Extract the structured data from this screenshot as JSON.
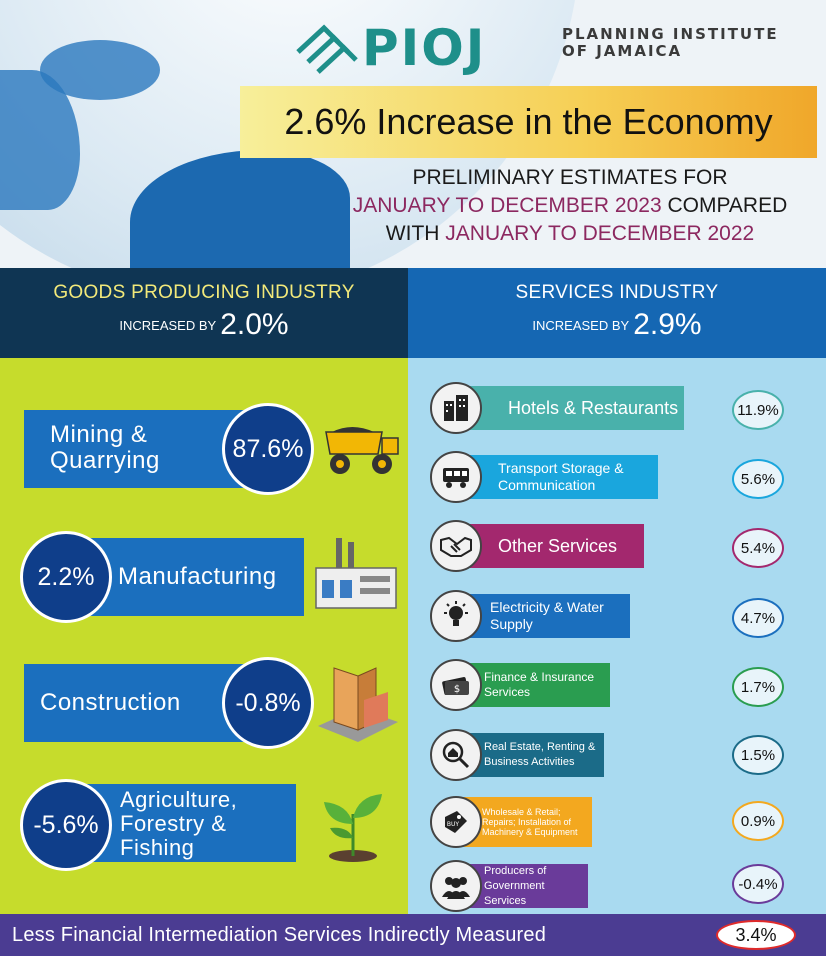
{
  "header": {
    "logo_word": "PIOJ",
    "logo_sub_line1": "PLANNING INSTITUTE",
    "logo_sub_line2": "OF JAMAICA",
    "title": "2.6% Increase in the Economy",
    "subtitle_line1": "PRELIMINARY ESTIMATES FOR",
    "subtitle_period1": "JANUARY TO DECEMBER 2023",
    "subtitle_compared": " COMPARED",
    "subtitle_with": "WITH ",
    "subtitle_period2": "JANUARY TO DECEMBER 2022"
  },
  "goods": {
    "title": "GOODS PRODUCING INDUSTRY",
    "increase_prefix": "INCREASED BY",
    "increase_value": "2.0%",
    "items": [
      {
        "label_line1": "Mining &",
        "label_line2": "Quarrying",
        "value": "87.6%",
        "icon": "dump-truck-icon"
      },
      {
        "label_line1": "Manufacturing",
        "label_line2": "",
        "value": "2.2%",
        "icon": "factory-icon"
      },
      {
        "label_line1": "Construction",
        "label_line2": "",
        "value": "-0.8%",
        "icon": "building-icon"
      },
      {
        "label_line1": "Agriculture,",
        "label_line2": "Forestry &",
        "label_line3": "Fishing",
        "value": "-5.6%",
        "icon": "sprout-icon"
      }
    ]
  },
  "services": {
    "title": "SERVICES INDUSTRY",
    "increase_prefix": "INCREASED BY",
    "increase_value": "2.9%",
    "items": [
      {
        "label": "Hotels & Restaurants",
        "value": "11.9%",
        "color": "#49b1ab",
        "icon": "hotel-icon"
      },
      {
        "label": "Transport Storage & Communication",
        "value": "5.6%",
        "color": "#1aa6dd",
        "icon": "train-icon"
      },
      {
        "label": "Other Services",
        "value": "5.4%",
        "color": "#a3286e",
        "icon": "handshake-icon"
      },
      {
        "label": "Electricity & Water Supply",
        "value": "4.7%",
        "color": "#1b6fbe",
        "icon": "lightbulb-icon"
      },
      {
        "label": "Finance & Insurance Services",
        "value": "1.7%",
        "color": "#2a9d50",
        "icon": "money-icon"
      },
      {
        "label": "Real Estate, Renting & Business Activities",
        "value": "1.5%",
        "color": "#1b6b88",
        "icon": "house-search-icon"
      },
      {
        "label": "Wholesale & Retail; Repairs; Installation of Machinery & Equipment",
        "value": "0.9%",
        "color": "#f3a81f",
        "icon": "price-tag-icon"
      },
      {
        "label": "Producers of Government Services",
        "value": "-0.4%",
        "color": "#6a3b9a",
        "icon": "people-icon"
      }
    ]
  },
  "footer": {
    "label": "Less Financial Intermediation Services Indirectly Measured",
    "value": "3.4%"
  },
  "colors": {
    "goods_panel": "#c6dc2c",
    "services_panel": "#a9daf0",
    "goods_header": "#0f3553",
    "services_header": "#1567b3",
    "footer": "#4b3c92"
  }
}
